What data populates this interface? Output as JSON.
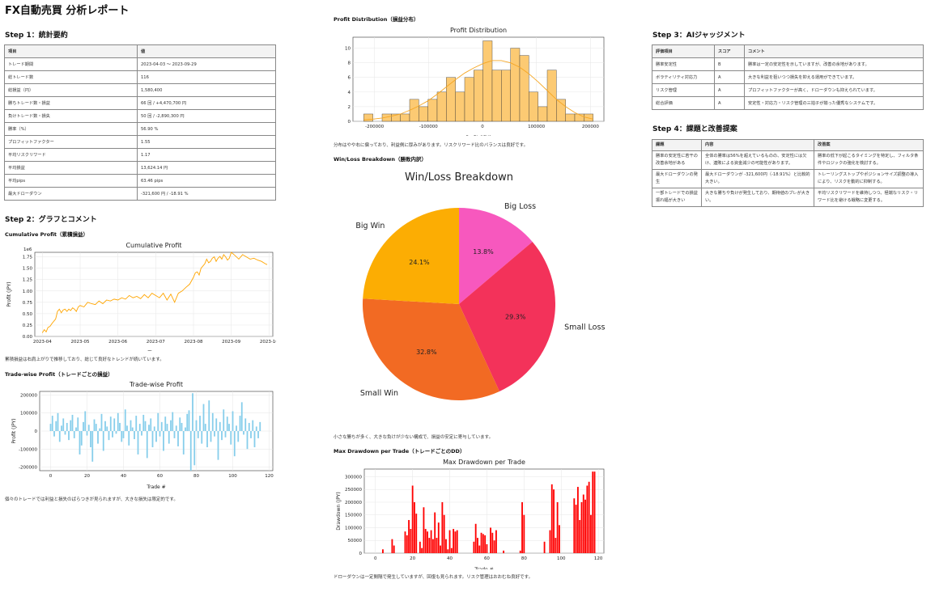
{
  "page_title": "FX自動売買 分析レポート",
  "step1": {
    "title": "Step 1：統計要約",
    "headers": [
      "項目",
      "値"
    ],
    "rows": [
      [
        "トレード期間",
        "2023-04-03 〜 2023-09-29"
      ],
      [
        "総トレード数",
        "116"
      ],
      [
        "総損益（円）",
        "1,580,400"
      ],
      [
        "勝ちトレード数・損益",
        "66 回 / +4,470,700 円"
      ],
      [
        "負けトレード数・損失",
        "50 回 / -2,890,300 円"
      ],
      [
        "勝率（%）",
        "56.90 %"
      ],
      [
        "プロフィットファクター",
        "1.55"
      ],
      [
        "平均リスクリワード",
        "1.17"
      ],
      [
        "平均損益",
        "13,624.14 円"
      ],
      [
        "平均pips",
        "63.46 pips"
      ],
      [
        "最大ドローダウン",
        "-321,600 円 / -18.91 %"
      ]
    ]
  },
  "step2": {
    "title": "Step 2：グラフとコメント",
    "cumulative_subtitle": "Cumulative Profit（累積損益）",
    "cumulative_comment": "累積損益は右肩上がりで推移しており、総じて良好なトレンドが続いています。",
    "tradewise_subtitle": "Trade-wise Profit（トレードごとの損益）",
    "tradewise_comment": "個々のトレードでは利益と損失のばらつきが見られますが、大きな損失は限定的です。"
  },
  "middle": {
    "distribution_subtitle": "Profit Distribution（損益分布）",
    "distribution_comment": "分布はやや右に偏っており、利益側に厚みがあります。リスクリワード比のバランスは良好です。",
    "winloss_subtitle": "Win/Loss Breakdown（勝敗内訳）",
    "winloss_comment": "小さな勝ちが多く、大きな負けが少ない構成で、損益の安定に寄与しています。",
    "drawdown_subtitle": "Max Drawdown per Trade（トレードごとのDD）",
    "drawdown_comment": "ドローダウンは一定間隔で発生していますが、回復も見られます。リスク管理はおおむね良好です。"
  },
  "step3": {
    "title": "Step 3：AIジャッジメント",
    "headers": [
      "評価項目",
      "スコア",
      "コメント"
    ],
    "rows": [
      [
        "勝率安定性",
        "B",
        "勝率は一定の安定性を示していますが、改善の余地があります。"
      ],
      [
        "ボラティリティ対応力",
        "A",
        "大きな利益を狙いつつ損失を抑える運用ができています。"
      ],
      [
        "リスク管理",
        "A",
        "プロフィットファクターが高く、ドローダウンも抑えられています。"
      ],
      [
        "総合評価",
        "A",
        "安定性・対応力・リスク管理の三拍子が揃った優秀なシステムです。"
      ]
    ]
  },
  "step4": {
    "title": "Step 4：課題と改善提案",
    "headers": [
      "課題",
      "内容",
      "改善案"
    ],
    "rows": [
      [
        "勝率の安定性に若干の改善余地がある",
        "全体の勝率は56%を超えているものの、安定性には欠け、連敗による資金減少の可能性があります。",
        "勝率の低下が起こるタイミングを特定し、フィルタ条件やロジックの強化を検討する。"
      ],
      [
        "最大ドローダウンの発生",
        "最大ドローダウンが -321,600円（-18.91%）と比較的大きい。",
        "トレーリングストップやポジションサイズ調整の導入により、リスクを動的に抑制する。"
      ],
      [
        "一部トレードでの損益振れ幅が大きい",
        "大きな勝ちや負けが発生しており、期待値のブレが大きい。",
        "平均リスクリワードを維持しつつ、極端なリスク・リワード比を避ける戦略に変更する。"
      ]
    ]
  },
  "chart_data": [
    {
      "type": "line",
      "title": "Cumulative Profit",
      "xlabel": "Time",
      "ylabel": "Profit (JPY)",
      "y_multiplier_label": "1e6",
      "x_ticks": [
        "2023-04",
        "2023-05",
        "2023-06",
        "2023-07",
        "2023-08",
        "2023-09",
        "2023-10"
      ],
      "y_ticks": [
        "0.00",
        "0.25",
        "0.50",
        "0.75",
        "1.00",
        "1.25",
        "1.50",
        "1.75"
      ],
      "ylim": [
        0,
        1.85
      ],
      "color": "#ffa500",
      "x": [
        0.0,
        0.05,
        0.1,
        0.15,
        0.2,
        0.25,
        0.3,
        0.35,
        0.4,
        0.45,
        0.5,
        0.55,
        0.6,
        0.65,
        0.7,
        0.75,
        0.8,
        0.85,
        0.9,
        0.95,
        1.0,
        1.1,
        1.2,
        1.3,
        1.4,
        1.5,
        1.6,
        1.7,
        1.8,
        1.9,
        2.0,
        2.1,
        2.2,
        2.3,
        2.4,
        2.5,
        2.6,
        2.7,
        2.8,
        2.9,
        3.0,
        3.1,
        3.2,
        3.3,
        3.4,
        3.5,
        3.6,
        3.7,
        3.8,
        3.9,
        4.0,
        4.05,
        4.1,
        4.15,
        4.2,
        4.25,
        4.3,
        4.35,
        4.4,
        4.45,
        4.5,
        4.55,
        4.6,
        4.65,
        4.7,
        4.75,
        4.8,
        4.85,
        4.9,
        4.95,
        5.0,
        5.1,
        5.2,
        5.3,
        5.4,
        5.5,
        5.6,
        5.7,
        5.8,
        5.9,
        5.95
      ],
      "values": [
        0.08,
        0.15,
        0.1,
        0.2,
        0.22,
        0.28,
        0.33,
        0.38,
        0.55,
        0.6,
        0.52,
        0.58,
        0.6,
        0.55,
        0.6,
        0.57,
        0.63,
        0.6,
        0.55,
        0.65,
        0.68,
        0.65,
        0.75,
        0.72,
        0.7,
        0.78,
        0.72,
        0.8,
        0.78,
        0.82,
        0.8,
        0.85,
        0.82,
        0.9,
        0.85,
        0.88,
        0.83,
        0.92,
        0.85,
        0.95,
        0.9,
        0.85,
        0.95,
        0.8,
        0.93,
        0.75,
        0.95,
        1.0,
        1.08,
        1.15,
        1.3,
        1.4,
        1.42,
        1.35,
        1.5,
        1.55,
        1.6,
        1.7,
        1.62,
        1.65,
        1.72,
        1.75,
        1.65,
        1.72,
        1.76,
        1.7,
        1.8,
        1.75,
        1.68,
        1.72,
        1.85,
        1.78,
        1.7,
        1.8,
        1.75,
        1.7,
        1.72,
        1.68,
        1.65,
        1.6,
        1.58
      ]
    },
    {
      "type": "bar",
      "title": "Trade-wise Profit",
      "xlabel": "Trade #",
      "ylabel": "Profit (JPY)",
      "x_ticks": [
        "0",
        "20",
        "40",
        "60",
        "80",
        "100",
        "120"
      ],
      "y_ticks": [
        "200000",
        "100000",
        "0",
        "-100000",
        "-200000"
      ],
      "ylim": [
        -220000,
        220000
      ],
      "color": "#87ceeb",
      "values": [
        40000,
        85000,
        -30000,
        55000,
        100000,
        -60000,
        30000,
        70000,
        -20000,
        45000,
        -50000,
        60000,
        90000,
        -40000,
        20000,
        75000,
        -130000,
        -80000,
        50000,
        110000,
        -25000,
        35000,
        -90000,
        -170000,
        65000,
        40000,
        -70000,
        15000,
        95000,
        -110000,
        55000,
        25000,
        -50000,
        80000,
        -35000,
        70000,
        -15000,
        100000,
        45000,
        -60000,
        -40000,
        120000,
        30000,
        -80000,
        60000,
        20000,
        -45000,
        85000,
        -130000,
        40000,
        -25000,
        90000,
        55000,
        -150000,
        35000,
        70000,
        -90000,
        25000,
        -60000,
        100000,
        -30000,
        50000,
        -110000,
        80000,
        40000,
        -70000,
        60000,
        105000,
        -40000,
        30000,
        -85000,
        75000,
        45000,
        -130000,
        20000,
        95000,
        115000,
        -220000,
        210000,
        -190000,
        60000,
        -40000,
        85000,
        -70000,
        150000,
        40000,
        -90000,
        170000,
        -60000,
        100000,
        -30000,
        70000,
        -160000,
        50000,
        -50000,
        120000,
        -35000,
        80000,
        40000,
        -75000,
        110000,
        -140000,
        30000,
        -60000,
        85000,
        160000,
        -20000,
        70000,
        -100000,
        45000,
        -40000,
        60000,
        -90000,
        25000,
        -40000,
        50000
      ]
    },
    {
      "type": "bar",
      "title": "Profit Distribution",
      "xlabel": "Profit (JPY)",
      "ylabel": "Count",
      "x_ticks": [
        "-200000",
        "-100000",
        "0",
        "100000",
        "200000"
      ],
      "y_ticks": [
        "0",
        "2",
        "4",
        "6",
        "8",
        "10"
      ],
      "ylim": [
        0,
        11.5
      ],
      "color": "#fcca73",
      "bin_edges": [
        -220000,
        -203000,
        -186000,
        -169000,
        -152000,
        -135000,
        -118000,
        -101000,
        -84000,
        -67000,
        -50000,
        -33000,
        -16000,
        1000,
        18000,
        35000,
        52000,
        69000,
        86000,
        103000,
        120000,
        137000,
        154000,
        171000,
        188000,
        205000
      ],
      "counts": [
        1,
        0,
        1,
        1,
        1,
        3,
        2,
        3,
        4,
        6,
        4,
        6,
        7,
        11,
        7,
        7,
        10,
        9,
        4,
        2,
        7,
        3,
        1,
        1,
        1
      ],
      "kde_values": [
        0.2,
        0.3,
        0.45,
        0.7,
        1.0,
        1.5,
        2.1,
        2.8,
        3.7,
        4.7,
        5.7,
        6.6,
        7.3,
        7.9,
        8.3,
        8.3,
        8.0,
        7.4,
        6.5,
        5.4,
        4.2,
        3.0,
        2.0,
        1.2,
        0.6,
        0.3
      ]
    },
    {
      "type": "pie",
      "title": "Win/Loss Breakdown",
      "labels": [
        "Big Loss",
        "Small Loss",
        "Small Win",
        "Big Win"
      ],
      "values": [
        13.8,
        29.3,
        32.8,
        24.1
      ],
      "percent_labels": [
        "13.8%",
        "29.3%",
        "32.8%",
        "24.1%"
      ],
      "colors": [
        "#f758be",
        "#f3325a",
        "#f26a23",
        "#fcad03"
      ]
    },
    {
      "type": "bar",
      "title": "Max Drawdown per Trade",
      "xlabel": "Trade #",
      "ylabel": "Drawdown (JPY)",
      "x_ticks": [
        "0",
        "20",
        "40",
        "60",
        "80",
        "100",
        "120"
      ],
      "y_ticks": [
        "0",
        "50000",
        "100000",
        "150000",
        "200000",
        "250000",
        "300000"
      ],
      "ylim": [
        0,
        330000
      ],
      "color": "#ff0000",
      "values": [
        0,
        0,
        0,
        0,
        15000,
        0,
        0,
        0,
        0,
        55000,
        30000,
        0,
        0,
        0,
        0,
        0,
        85000,
        70000,
        130000,
        95000,
        265000,
        200000,
        155000,
        0,
        45000,
        20000,
        180000,
        95000,
        85000,
        60000,
        90000,
        55000,
        160000,
        60000,
        120000,
        30000,
        200000,
        150000,
        55000,
        15000,
        90000,
        20000,
        95000,
        85000,
        90000,
        0,
        0,
        0,
        0,
        0,
        0,
        0,
        0,
        45000,
        115000,
        60000,
        30000,
        80000,
        75000,
        70000,
        35000,
        0,
        100000,
        80000,
        50000,
        90000,
        0,
        0,
        0,
        10000,
        0,
        0,
        0,
        0,
        0,
        0,
        0,
        0,
        10000,
        200000,
        150000,
        0,
        0,
        0,
        0,
        0,
        0,
        0,
        0,
        0,
        0,
        45000,
        0,
        0,
        90000,
        270000,
        250000,
        60000,
        200000,
        110000,
        0,
        0,
        0,
        0,
        0,
        0,
        0,
        215000,
        190000,
        260000,
        130000,
        200000,
        230000,
        210000,
        265000,
        280000,
        150000,
        320000,
        320000,
        0
      ]
    }
  ]
}
